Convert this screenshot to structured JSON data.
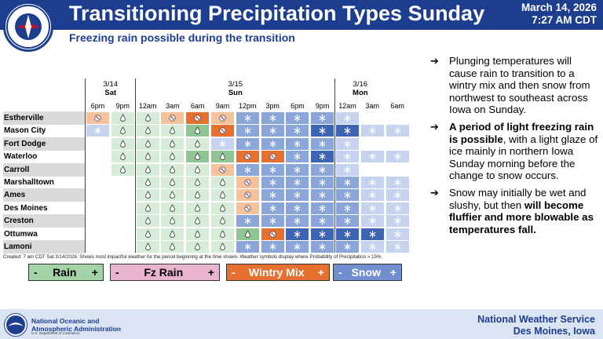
{
  "header": {
    "title": "Transitioning Precipitation Types Sunday",
    "date": "March 14, 2026",
    "time": "7:27 AM CDT",
    "subtitle": "Freezing rain possible during the transition",
    "seal_text": "NATIONAL WEATHER SERVICE"
  },
  "colors": {
    "brand_blue": "#1d3d8f",
    "rain": "#8fc593",
    "freezing_rain": "#e9b4cd",
    "wintry_mix": "#e8702f",
    "snow": "#6f8fd1"
  },
  "timeline": {
    "days": [
      {
        "date": "3/14",
        "name": "Sat"
      },
      {
        "date": "3/15",
        "name": "Sun"
      },
      {
        "date": "3/16",
        "name": "Mon"
      }
    ],
    "times": [
      "6pm",
      "9pm",
      "12am",
      "3am",
      "6am",
      "9am",
      "12pm",
      "3pm",
      "6pm",
      "9pm",
      "12am",
      "3am",
      "6am"
    ]
  },
  "grid": {
    "legend_codes": {
      "R": "rain",
      "F": "freezing rain",
      "M": "wintry mix",
      "S": "snow",
      "-": "none"
    },
    "rows": [
      {
        "name": "Estherville",
        "cells": [
          {
            "t": "M",
            "bg": "wm"
          },
          {
            "t": "R",
            "bg": "rain"
          },
          {
            "t": "R",
            "bg": "rain"
          },
          {
            "t": "M",
            "bg": "wm"
          },
          {
            "t": "M",
            "bg": "wm-dk"
          },
          {
            "t": "M",
            "bg": "wm"
          },
          {
            "t": "S",
            "bg": "sn"
          },
          {
            "t": "S",
            "bg": "sn"
          },
          {
            "t": "S",
            "bg": "sn"
          },
          {
            "t": "S",
            "bg": "sn"
          },
          {
            "t": "S",
            "bg": "sn-lt"
          },
          {
            "t": "-",
            "bg": "blank"
          },
          {
            "t": "-",
            "bg": "blank"
          }
        ]
      },
      {
        "name": "Mason City",
        "cells": [
          {
            "t": "S",
            "bg": "sn-lt"
          },
          {
            "t": "R",
            "bg": "rain"
          },
          {
            "t": "R",
            "bg": "rain"
          },
          {
            "t": "R",
            "bg": "rain"
          },
          {
            "t": "R",
            "bg": "rain-dk"
          },
          {
            "t": "M",
            "bg": "wm-dk"
          },
          {
            "t": "S",
            "bg": "sn"
          },
          {
            "t": "S",
            "bg": "sn"
          },
          {
            "t": "S",
            "bg": "sn"
          },
          {
            "t": "S",
            "bg": "sn-dk"
          },
          {
            "t": "S",
            "bg": "sn-dk"
          },
          {
            "t": "S",
            "bg": "sn-lt"
          },
          {
            "t": "S",
            "bg": "sn-lt"
          }
        ]
      },
      {
        "name": "Fort Dodge",
        "cells": [
          {
            "t": "-",
            "bg": "blank"
          },
          {
            "t": "R",
            "bg": "rain"
          },
          {
            "t": "R",
            "bg": "rain"
          },
          {
            "t": "R",
            "bg": "rain"
          },
          {
            "t": "R",
            "bg": "rain"
          },
          {
            "t": "S",
            "bg": "sn-lt"
          },
          {
            "t": "S",
            "bg": "sn"
          },
          {
            "t": "S",
            "bg": "sn"
          },
          {
            "t": "S",
            "bg": "sn"
          },
          {
            "t": "S",
            "bg": "sn"
          },
          {
            "t": "S",
            "bg": "sn-lt"
          },
          {
            "t": "-",
            "bg": "blank"
          },
          {
            "t": "-",
            "bg": "blank"
          }
        ]
      },
      {
        "name": "Waterloo",
        "cells": [
          {
            "t": "-",
            "bg": "blank"
          },
          {
            "t": "R",
            "bg": "rain"
          },
          {
            "t": "R",
            "bg": "rain"
          },
          {
            "t": "R",
            "bg": "rain"
          },
          {
            "t": "R",
            "bg": "rain-dk"
          },
          {
            "t": "R",
            "bg": "rain-dk"
          },
          {
            "t": "M",
            "bg": "wm-dk"
          },
          {
            "t": "M",
            "bg": "wm-dk"
          },
          {
            "t": "S",
            "bg": "sn"
          },
          {
            "t": "S",
            "bg": "sn-dk"
          },
          {
            "t": "S",
            "bg": "sn-lt"
          },
          {
            "t": "S",
            "bg": "sn-lt"
          },
          {
            "t": "S",
            "bg": "sn-lt"
          }
        ]
      },
      {
        "name": "Carroll",
        "cells": [
          {
            "t": "-",
            "bg": "blank"
          },
          {
            "t": "R",
            "bg": "rain"
          },
          {
            "t": "R",
            "bg": "rain"
          },
          {
            "t": "R",
            "bg": "rain"
          },
          {
            "t": "R",
            "bg": "rain"
          },
          {
            "t": "M",
            "bg": "wm"
          },
          {
            "t": "S",
            "bg": "sn"
          },
          {
            "t": "S",
            "bg": "sn"
          },
          {
            "t": "S",
            "bg": "sn"
          },
          {
            "t": "S",
            "bg": "sn"
          },
          {
            "t": "S",
            "bg": "sn-lt"
          },
          {
            "t": "-",
            "bg": "blank"
          },
          {
            "t": "-",
            "bg": "blank"
          }
        ]
      },
      {
        "name": "Marshalltown",
        "cells": [
          {
            "t": "-",
            "bg": "blank"
          },
          {
            "t": "-",
            "bg": "blank"
          },
          {
            "t": "R",
            "bg": "rain"
          },
          {
            "t": "R",
            "bg": "rain"
          },
          {
            "t": "R",
            "bg": "rain"
          },
          {
            "t": "R",
            "bg": "rain"
          },
          {
            "t": "M",
            "bg": "wm"
          },
          {
            "t": "S",
            "bg": "sn"
          },
          {
            "t": "S",
            "bg": "sn"
          },
          {
            "t": "S",
            "bg": "sn"
          },
          {
            "t": "S",
            "bg": "sn"
          },
          {
            "t": "S",
            "bg": "sn-lt"
          },
          {
            "t": "S",
            "bg": "sn-lt"
          }
        ]
      },
      {
        "name": "Ames",
        "cells": [
          {
            "t": "-",
            "bg": "blank"
          },
          {
            "t": "-",
            "bg": "blank"
          },
          {
            "t": "R",
            "bg": "rain"
          },
          {
            "t": "R",
            "bg": "rain"
          },
          {
            "t": "R",
            "bg": "rain"
          },
          {
            "t": "R",
            "bg": "rain"
          },
          {
            "t": "M",
            "bg": "wm"
          },
          {
            "t": "S",
            "bg": "sn"
          },
          {
            "t": "S",
            "bg": "sn"
          },
          {
            "t": "S",
            "bg": "sn"
          },
          {
            "t": "S",
            "bg": "sn"
          },
          {
            "t": "S",
            "bg": "sn-lt"
          },
          {
            "t": "S",
            "bg": "sn-lt"
          }
        ]
      },
      {
        "name": "Des Moines",
        "cells": [
          {
            "t": "-",
            "bg": "blank"
          },
          {
            "t": "-",
            "bg": "blank"
          },
          {
            "t": "R",
            "bg": "rain"
          },
          {
            "t": "R",
            "bg": "rain"
          },
          {
            "t": "R",
            "bg": "rain"
          },
          {
            "t": "R",
            "bg": "rain"
          },
          {
            "t": "M",
            "bg": "wm"
          },
          {
            "t": "S",
            "bg": "sn"
          },
          {
            "t": "S",
            "bg": "sn"
          },
          {
            "t": "S",
            "bg": "sn"
          },
          {
            "t": "S",
            "bg": "sn"
          },
          {
            "t": "S",
            "bg": "sn-lt"
          },
          {
            "t": "S",
            "bg": "sn-lt"
          }
        ]
      },
      {
        "name": "Creston",
        "cells": [
          {
            "t": "-",
            "bg": "blank"
          },
          {
            "t": "-",
            "bg": "blank"
          },
          {
            "t": "R",
            "bg": "rain"
          },
          {
            "t": "R",
            "bg": "rain"
          },
          {
            "t": "R",
            "bg": "rain"
          },
          {
            "t": "R",
            "bg": "rain"
          },
          {
            "t": "S",
            "bg": "sn"
          },
          {
            "t": "S",
            "bg": "sn"
          },
          {
            "t": "S",
            "bg": "sn"
          },
          {
            "t": "S",
            "bg": "sn"
          },
          {
            "t": "S",
            "bg": "sn"
          },
          {
            "t": "S",
            "bg": "sn-lt"
          },
          {
            "t": "S",
            "bg": "sn-lt"
          }
        ]
      },
      {
        "name": "Ottumwa",
        "cells": [
          {
            "t": "-",
            "bg": "blank"
          },
          {
            "t": "-",
            "bg": "blank"
          },
          {
            "t": "R",
            "bg": "rain"
          },
          {
            "t": "R",
            "bg": "rain"
          },
          {
            "t": "R",
            "bg": "rain"
          },
          {
            "t": "R",
            "bg": "rain"
          },
          {
            "t": "R",
            "bg": "rain-dk"
          },
          {
            "t": "M",
            "bg": "wm-dk"
          },
          {
            "t": "S",
            "bg": "sn-dk"
          },
          {
            "t": "S",
            "bg": "sn-dk"
          },
          {
            "t": "S",
            "bg": "sn-dk"
          },
          {
            "t": "S",
            "bg": "sn-dk"
          },
          {
            "t": "S",
            "bg": "sn-lt"
          }
        ]
      },
      {
        "name": "Lamoni",
        "cells": [
          {
            "t": "-",
            "bg": "blank"
          },
          {
            "t": "-",
            "bg": "blank"
          },
          {
            "t": "R",
            "bg": "rain"
          },
          {
            "t": "R",
            "bg": "rain"
          },
          {
            "t": "R",
            "bg": "rain"
          },
          {
            "t": "R",
            "bg": "rain"
          },
          {
            "t": "S",
            "bg": "sn"
          },
          {
            "t": "S",
            "bg": "sn"
          },
          {
            "t": "S",
            "bg": "sn"
          },
          {
            "t": "S",
            "bg": "sn"
          },
          {
            "t": "S",
            "bg": "sn"
          },
          {
            "t": "S",
            "bg": "sn-lt"
          },
          {
            "t": "S",
            "bg": "sn-lt"
          }
        ]
      }
    ],
    "footnote": "Created: 7 am CDT Sat 3/14/2026. Shows most impactful weather for the period beginning at the time shown. Weather symbols display where Probability of Precipitation > 15%."
  },
  "legend": {
    "rain": {
      "minus": "-",
      "label": "Rain",
      "plus": "+"
    },
    "freezing_rain": {
      "minus": "-",
      "label": "Fz Rain",
      "plus": "+"
    },
    "wintry_mix": {
      "minus": "-",
      "label": "Wintry Mix",
      "plus": "+"
    },
    "snow": {
      "minus": "-",
      "label": "Snow",
      "plus": "+"
    }
  },
  "bullets": {
    "b1": "Plunging temperatures will cause rain to transition to a wintry mix and then snow from northwest to southeast across Iowa on Sunday.",
    "b2_bold": "A period of light freezing rain is possible",
    "b2_rest": ", with a light glaze of ice mainly in northern Iowa Sunday morning before the change to snow occurs.",
    "b3_start": "Snow may initially be wet and slushy, but then ",
    "b3_bold": "will become fluffier and more blowable as temperatures fall."
  },
  "footer": {
    "noaa_name_line1": "National Oceanic and",
    "noaa_name_line2": "Atmospheric Administration",
    "noaa_sub": "U.S. Department of Commerce",
    "office_line1": "National Weather Service",
    "office_line2": "Des Moines, Iowa"
  }
}
